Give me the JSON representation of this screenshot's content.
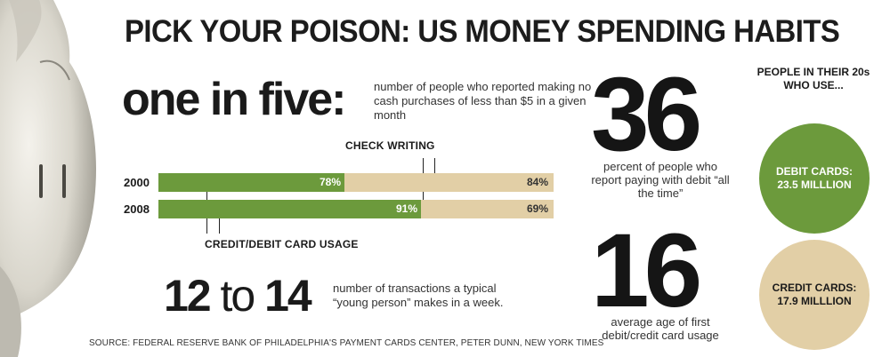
{
  "title": "PICK YOUR POISON: US MONEY SPENDING HABITS",
  "one_in_five": {
    "big": "one in five:",
    "desc": "number of people who reported making no cash purchases of less than $5 in a given month"
  },
  "chart_data": {
    "type": "bar",
    "categories": [
      "2000",
      "2008"
    ],
    "series": [
      {
        "name": "CREDIT/DEBIT CARD USAGE",
        "values": [
          78,
          91
        ],
        "labels": [
          "78%",
          "91%"
        ]
      },
      {
        "name": "CHECK WRITING",
        "values": [
          84,
          69
        ],
        "labels": [
          "84%",
          "69%"
        ]
      }
    ]
  },
  "twelve_to_fourteen": {
    "num_a": "12",
    "mid": " to ",
    "num_b": "14",
    "desc": "number of transactions a typical “young person” makes in a week."
  },
  "stat_36": {
    "big": "36",
    "desc": "percent of people who report paying with debit “all the time”"
  },
  "stat_16": {
    "big": "16",
    "desc": "average age of first debit/credit card usage"
  },
  "people_20s": {
    "header": "PEOPLE IN THEIR 20s WHO USE...",
    "debit": "DEBIT CARDS: 23.5 MILLLION",
    "credit": "CREDIT CARDS: 17.9 MILLLION"
  },
  "source": "SOURCE: FEDERAL RESERVE BANK OF PHILADELPHIA'S PAYMENT CARDS CENTER, PETER DUNN, NEW YORK TIMES",
  "colors": {
    "green": "#6c9a3c",
    "tan": "#e2cfa6",
    "ink": "#1a1a1a"
  },
  "icons": [
    "piggy-bank-icon"
  ]
}
